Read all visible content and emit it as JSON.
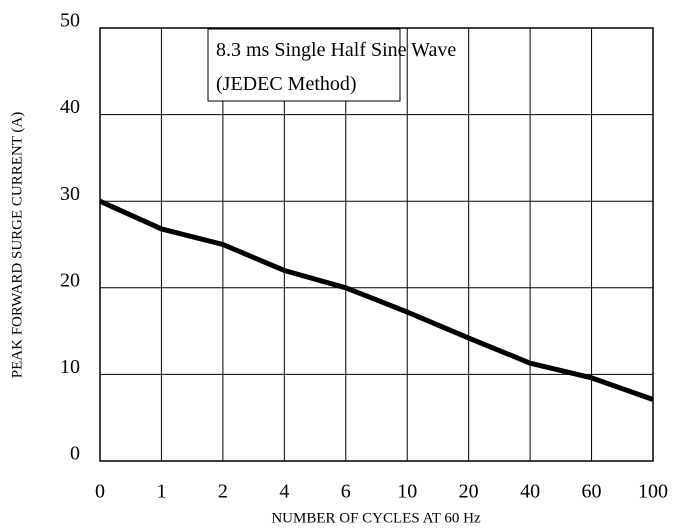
{
  "chart_data": {
    "type": "line",
    "annotation": [
      "8.3 ms Single Half Sine Wave",
      "(JEDEC Method)"
    ],
    "x_label": "NUMBER OF CYCLES AT 60 Hz",
    "y_label": "PEAK FORWARD SURGE CURRENT (A)",
    "categories": [
      "0",
      "1",
      "2",
      "4",
      "6",
      "10",
      "20",
      "40",
      "60",
      "100"
    ],
    "values": [
      30,
      26.8,
      25,
      22,
      20,
      17.2,
      14.2,
      11.3,
      9.6,
      7.1
    ],
    "color": "#000000",
    "ylim": [
      0,
      50
    ],
    "yticks": [
      0,
      10,
      20,
      30,
      40,
      50
    ],
    "grid": true
  }
}
